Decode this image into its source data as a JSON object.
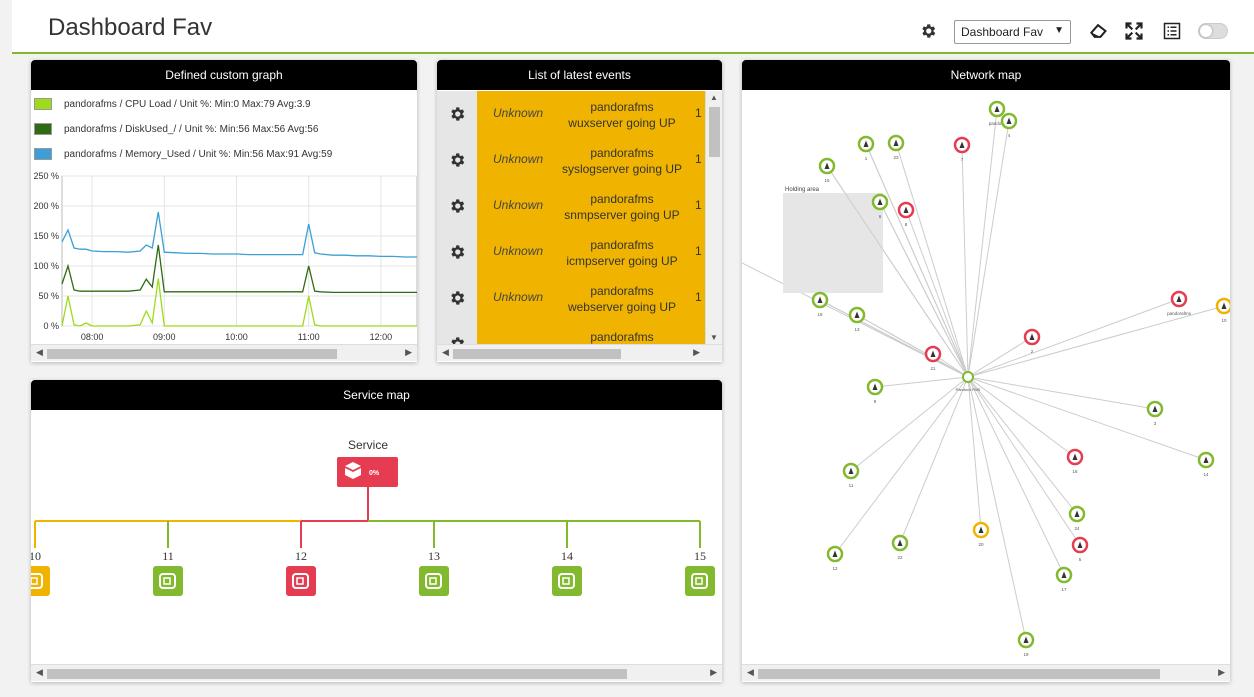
{
  "header": {
    "title": "Dashboard Fav",
    "dashboard_select": "Dashboard Fav"
  },
  "graph_widget": {
    "title": "Defined custom graph",
    "legend": [
      {
        "label": "pandorafms / CPU Load / Unit %: Min:0 Max:79 Avg:3.9",
        "color": "#9cdc1a"
      },
      {
        "label": "pandorafms / DiskUsed_/ / Unit %: Min:56 Max:56 Avg:56",
        "color": "#2f6b12"
      },
      {
        "label": "pandorafms / Memory_Used / Unit %: Min:56 Max:91 Avg:59",
        "color": "#3c9fd6"
      }
    ]
  },
  "chart_data": {
    "type": "line",
    "x_ticks": [
      "08:00",
      "09:00",
      "10:00",
      "11:00",
      "12:00"
    ],
    "y_ticks": [
      "250 %",
      "200 %",
      "150 %",
      "100 %",
      "50 %",
      "0 %"
    ],
    "ylim": [
      0,
      250
    ],
    "x": [
      "07:35",
      "07:40",
      "07:45",
      "07:50",
      "07:55",
      "08:00",
      "08:10",
      "08:20",
      "08:30",
      "08:40",
      "08:45",
      "08:50",
      "08:55",
      "09:00",
      "09:10",
      "09:20",
      "09:30",
      "09:40",
      "09:50",
      "10:00",
      "10:10",
      "10:20",
      "10:30",
      "10:40",
      "10:50",
      "10:55",
      "11:00",
      "11:05",
      "11:10",
      "11:20",
      "11:30",
      "11:40",
      "11:50",
      "12:00",
      "12:10",
      "12:20",
      "12:30"
    ],
    "series": [
      {
        "name": "pandorafms / Memory_Used / Unit %: Min:56 Max:91 Avg:59",
        "color": "#3c9fd6",
        "values": [
          140,
          160,
          130,
          128,
          128,
          125,
          124,
          124,
          123,
          125,
          135,
          130,
          190,
          123,
          122,
          121,
          121,
          120,
          120,
          120,
          119,
          119,
          119,
          119,
          119,
          119,
          170,
          122,
          120,
          118,
          118,
          117,
          117,
          116,
          116,
          115,
          115
        ]
      },
      {
        "name": "pandorafms / DiskUsed_/ / Unit %: Min:56 Max:56 Avg:56",
        "color": "#2f6b12",
        "values": [
          70,
          100,
          60,
          58,
          58,
          58,
          58,
          58,
          58,
          60,
          78,
          65,
          135,
          57,
          57,
          57,
          57,
          57,
          57,
          57,
          57,
          57,
          57,
          57,
          57,
          57,
          100,
          58,
          57,
          56,
          56,
          56,
          56,
          56,
          56,
          56,
          56
        ]
      },
      {
        "name": "pandorafms / CPU Load / Unit %: Min:0 Max:79 Avg:3.9",
        "color": "#9cdc1a",
        "values": [
          0,
          50,
          2,
          0,
          5,
          0,
          0,
          0,
          0,
          2,
          25,
          5,
          79,
          0,
          0,
          0,
          0,
          0,
          0,
          0,
          0,
          0,
          0,
          0,
          0,
          0,
          50,
          2,
          0,
          0,
          0,
          0,
          0,
          0,
          0,
          0,
          0
        ]
      }
    ]
  },
  "events_widget": {
    "title": "List of latest events",
    "rows": [
      {
        "status": "Unknown",
        "line1": "pandorafms",
        "line2": "wuxserver going UP",
        "count": "1"
      },
      {
        "status": "Unknown",
        "line1": "pandorafms",
        "line2": "syslogserver going UP",
        "count": "1"
      },
      {
        "status": "Unknown",
        "line1": "pandorafms",
        "line2": "snmpserver going UP",
        "count": "1"
      },
      {
        "status": "Unknown",
        "line1": "pandorafms",
        "line2": "icmpserver going UP",
        "count": "1"
      },
      {
        "status": "Unknown",
        "line1": "pandorafms",
        "line2": "webserver going UP",
        "count": "1"
      },
      {
        "status": "",
        "line1": "pandorafms",
        "line2": "",
        "count": ""
      }
    ]
  },
  "network_widget": {
    "title": "Network map",
    "holding_area": "Holding area",
    "center": {
      "label": "Pandora FMS"
    },
    "nodes": [
      {
        "id": "n-top1",
        "label": "pandora",
        "status": "ok"
      },
      {
        "id": "n-top2",
        "label": "4",
        "status": "ok"
      },
      {
        "id": "n1",
        "label": "1",
        "status": "ok"
      },
      {
        "id": "n23",
        "label": "23",
        "status": "ok"
      },
      {
        "id": "n7",
        "label": "7",
        "status": "critical"
      },
      {
        "id": "n15",
        "label": "15",
        "status": "ok"
      },
      {
        "id": "n6",
        "label": "6",
        "status": "ok"
      },
      {
        "id": "n8",
        "label": "8",
        "status": "critical"
      },
      {
        "id": "n18",
        "label": "18",
        "status": "ok"
      },
      {
        "id": "n13",
        "label": "13",
        "status": "ok"
      },
      {
        "id": "n-pf",
        "label": "pandorafms",
        "status": "critical"
      },
      {
        "id": "n10",
        "label": "10",
        "status": "warning"
      },
      {
        "id": "n2",
        "label": "2",
        "status": "critical"
      },
      {
        "id": "n21",
        "label": "21",
        "status": "critical"
      },
      {
        "id": "n9",
        "label": "9",
        "status": "ok"
      },
      {
        "id": "n3",
        "label": "3",
        "status": "ok"
      },
      {
        "id": "n11",
        "label": "11",
        "status": "ok"
      },
      {
        "id": "n16",
        "label": "16",
        "status": "critical"
      },
      {
        "id": "n14",
        "label": "14",
        "status": "ok"
      },
      {
        "id": "n24",
        "label": "24",
        "status": "ok"
      },
      {
        "id": "n22",
        "label": "22",
        "status": "ok"
      },
      {
        "id": "n20",
        "label": "20",
        "status": "warning"
      },
      {
        "id": "n5",
        "label": "5",
        "status": "critical"
      },
      {
        "id": "n17",
        "label": "17",
        "status": "ok"
      },
      {
        "id": "n12",
        "label": "12",
        "status": "ok"
      },
      {
        "id": "n19",
        "label": "19",
        "status": "ok"
      }
    ]
  },
  "service_widget": {
    "title": "Service map",
    "root_label": "Service",
    "root_percent": "0%",
    "children": [
      {
        "label": "10",
        "status": "warning"
      },
      {
        "label": "11",
        "status": "ok"
      },
      {
        "label": "12",
        "status": "critical"
      },
      {
        "label": "13",
        "status": "ok"
      },
      {
        "label": "14",
        "status": "ok"
      },
      {
        "label": "15",
        "status": "ok"
      }
    ]
  },
  "colors": {
    "ok": "#82b92e",
    "critical": "#e63c52",
    "warning": "#f0b400",
    "accent": "#82b92e"
  }
}
